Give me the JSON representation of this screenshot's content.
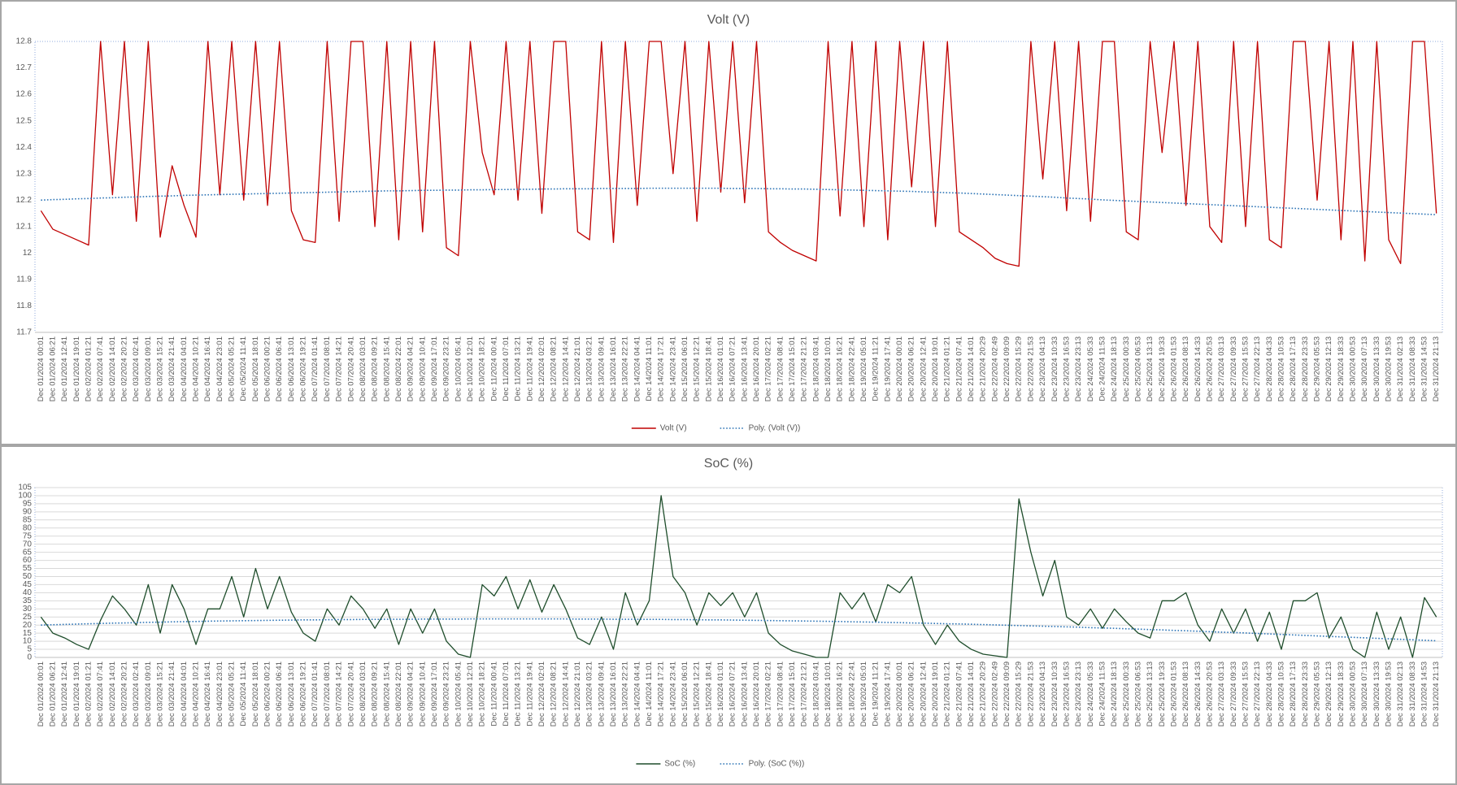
{
  "chart_data": [
    {
      "type": "line",
      "title": "Volt (V)",
      "categories": [
        "Dec 01/2024 00:01",
        "Dec 01/2024 06:21",
        "Dec 01/2024 12:41",
        "Dec 01/2024 19:01",
        "Dec 02/2024 01:21",
        "Dec 02/2024 07:41",
        "Dec 02/2024 14:01",
        "Dec 02/2024 20:21",
        "Dec 03/2024 02:41",
        "Dec 03/2024 09:01",
        "Dec 03/2024 15:21",
        "Dec 03/2024 21:41",
        "Dec 04/2024 04:01",
        "Dec 04/2024 10:21",
        "Dec 04/2024 16:41",
        "Dec 04/2024 23:01",
        "Dec 05/2024 05:21",
        "Dec 05/2024 11:41",
        "Dec 05/2024 18:01",
        "Dec 06/2024 00:21",
        "Dec 06/2024 06:41",
        "Dec 06/2024 13:01",
        "Dec 06/2024 19:21",
        "Dec 07/2024 01:41",
        "Dec 07/2024 08:01",
        "Dec 07/2024 14:21",
        "Dec 07/2024 20:41",
        "Dec 08/2024 03:01",
        "Dec 08/2024 09:21",
        "Dec 08/2024 15:41",
        "Dec 08/2024 22:01",
        "Dec 09/2024 04:21",
        "Dec 09/2024 10:41",
        "Dec 09/2024 17:01",
        "Dec 09/2024 23:21",
        "Dec 10/2024 05:41",
        "Dec 10/2024 12:01",
        "Dec 10/2024 18:21",
        "Dec 11/2024 00:41",
        "Dec 11/2024 07:01",
        "Dec 11/2024 13:21",
        "Dec 11/2024 19:41",
        "Dec 12/2024 02:01",
        "Dec 12/2024 08:21",
        "Dec 12/2024 14:41",
        "Dec 12/2024 21:01",
        "Dec 13/2024 03:21",
        "Dec 13/2024 09:41",
        "Dec 13/2024 16:01",
        "Dec 13/2024 22:21",
        "Dec 14/2024 04:41",
        "Dec 14/2024 11:01",
        "Dec 14/2024 17:21",
        "Dec 14/2024 23:41",
        "Dec 15/2024 06:01",
        "Dec 15/2024 12:21",
        "Dec 15/2024 18:41",
        "Dec 16/2024 01:01",
        "Dec 16/2024 07:21",
        "Dec 16/2024 13:41",
        "Dec 16/2024 20:01",
        "Dec 17/2024 02:21",
        "Dec 17/2024 08:41",
        "Dec 17/2024 15:01",
        "Dec 17/2024 21:21",
        "Dec 18/2024 03:41",
        "Dec 18/2024 10:01",
        "Dec 18/2024 16:21",
        "Dec 18/2024 22:41",
        "Dec 19/2024 05:01",
        "Dec 19/2024 11:21",
        "Dec 19/2024 17:41",
        "Dec 20/2024 00:01",
        "Dec 20/2024 06:21",
        "Dec 20/2024 12:41",
        "Dec 20/2024 19:01",
        "Dec 21/2024 01:21",
        "Dec 21/2024 07:41",
        "Dec 21/2024 14:01",
        "Dec 21/2024 20:29",
        "Dec 22/2024 02:49",
        "Dec 22/2024 09:09",
        "Dec 22/2024 15:29",
        "Dec 22/2024 21:53",
        "Dec 23/2024 04:13",
        "Dec 23/2024 10:33",
        "Dec 23/2024 16:53",
        "Dec 23/2024 23:13",
        "Dec 24/2024 05:33",
        "Dec 24/2024 11:53",
        "Dec 24/2024 18:13",
        "Dec 25/2024 00:33",
        "Dec 25/2024 06:53",
        "Dec 25/2024 13:13",
        "Dec 25/2024 19:33",
        "Dec 26/2024 01:53",
        "Dec 26/2024 08:13",
        "Dec 26/2024 14:33",
        "Dec 26/2024 20:53",
        "Dec 27/2024 03:13",
        "Dec 27/2024 09:33",
        "Dec 27/2024 15:53",
        "Dec 27/2024 22:13",
        "Dec 28/2024 04:33",
        "Dec 28/2024 10:53",
        "Dec 28/2024 17:13",
        "Dec 28/2024 23:33",
        "Dec 29/2024 05:53",
        "Dec 29/2024 12:13",
        "Dec 29/2024 18:33",
        "Dec 30/2024 00:53",
        "Dec 30/2024 07:13",
        "Dec 30/2024 13:33",
        "Dec 30/2024 19:53",
        "Dec 31/2024 02:13",
        "Dec 31/2024 08:33",
        "Dec 31/2024 14:53",
        "Dec 31/2024 21:13"
      ],
      "series": [
        {
          "name": "Volt (V)",
          "color": "#c00000",
          "style": "solid",
          "values": [
            12.16,
            12.09,
            12.07,
            12.05,
            12.03,
            12.8,
            12.22,
            12.8,
            12.12,
            12.8,
            12.06,
            12.33,
            12.18,
            12.06,
            12.8,
            12.22,
            12.8,
            12.2,
            12.8,
            12.18,
            12.8,
            12.16,
            12.05,
            12.04,
            12.8,
            12.12,
            12.8,
            12.8,
            12.1,
            12.8,
            12.05,
            12.8,
            12.08,
            12.8,
            12.02,
            11.99,
            12.8,
            12.38,
            12.22,
            12.8,
            12.2,
            12.8,
            12.15,
            12.8,
            12.8,
            12.08,
            12.05,
            12.8,
            12.04,
            12.8,
            12.18,
            12.8,
            12.8,
            12.3,
            12.8,
            12.12,
            12.8,
            12.23,
            12.8,
            12.19,
            12.8,
            12.08,
            12.04,
            12.01,
            11.99,
            11.97,
            12.8,
            12.14,
            12.8,
            12.1,
            12.8,
            12.05,
            12.8,
            12.25,
            12.8,
            12.1,
            12.8,
            12.08,
            12.05,
            12.02,
            11.98,
            11.96,
            11.95,
            12.8,
            12.28,
            12.8,
            12.16,
            12.8,
            12.12,
            12.8,
            12.8,
            12.08,
            12.05,
            12.8,
            12.38,
            12.8,
            12.18,
            12.8,
            12.1,
            12.04,
            12.8,
            12.1,
            12.8,
            12.05,
            12.02,
            12.8,
            12.8,
            12.2,
            12.8,
            12.05,
            12.8,
            11.97,
            12.8,
            12.05,
            11.96,
            12.8,
            12.8,
            12.15
          ]
        },
        {
          "name": "Poly. (Volt (V))",
          "color": "#2e75b6",
          "style": "dotted",
          "values": [
            12.2,
            12.202,
            12.203,
            12.205,
            12.206,
            12.208,
            12.209,
            12.211,
            12.212,
            12.214,
            12.215,
            12.216,
            12.218,
            12.219,
            12.22,
            12.221,
            12.222,
            12.223,
            12.224,
            12.225,
            12.226,
            12.227,
            12.228,
            12.229,
            12.23,
            12.231,
            12.232,
            12.233,
            12.234,
            12.235,
            12.235,
            12.236,
            12.237,
            12.237,
            12.238,
            12.238,
            12.239,
            12.239,
            12.24,
            12.24,
            12.241,
            12.241,
            12.242,
            12.242,
            12.243,
            12.243,
            12.243,
            12.244,
            12.244,
            12.244,
            12.244,
            12.245,
            12.245,
            12.245,
            12.245,
            12.245,
            12.245,
            12.245,
            12.244,
            12.244,
            12.244,
            12.243,
            12.243,
            12.242,
            12.242,
            12.241,
            12.24,
            12.239,
            12.238,
            12.237,
            12.236,
            12.235,
            12.234,
            12.233,
            12.231,
            12.23,
            12.228,
            12.227,
            12.225,
            12.223,
            12.221,
            12.219,
            12.217,
            12.215,
            12.213,
            12.211,
            12.208,
            12.206,
            12.204,
            12.201,
            12.199,
            12.197,
            12.195,
            12.193,
            12.191,
            12.189,
            12.187,
            12.185,
            12.183,
            12.181,
            12.179,
            12.177,
            12.175,
            12.173,
            12.171,
            12.169,
            12.167,
            12.165,
            12.163,
            12.161,
            12.159,
            12.157,
            12.155,
            12.153,
            12.151,
            12.149,
            12.147,
            12.145
          ]
        }
      ],
      "ylim": [
        11.7,
        12.8
      ],
      "yticks": [
        11.7,
        11.8,
        11.9,
        12,
        12.1,
        12.2,
        12.3,
        12.4,
        12.5,
        12.6,
        12.7,
        12.8
      ],
      "grid": false,
      "legend": "bottom"
    },
    {
      "type": "line",
      "title": "SoC (%)",
      "categories": [
        "Dec 01/2024 00:01",
        "Dec 01/2024 06:21",
        "Dec 01/2024 12:41",
        "Dec 01/2024 19:01",
        "Dec 02/2024 01:21",
        "Dec 02/2024 07:41",
        "Dec 02/2024 14:01",
        "Dec 02/2024 20:21",
        "Dec 03/2024 02:41",
        "Dec 03/2024 09:01",
        "Dec 03/2024 15:21",
        "Dec 03/2024 21:41",
        "Dec 04/2024 04:01",
        "Dec 04/2024 10:21",
        "Dec 04/2024 16:41",
        "Dec 04/2024 23:01",
        "Dec 05/2024 05:21",
        "Dec 05/2024 11:41",
        "Dec 05/2024 18:01",
        "Dec 06/2024 00:21",
        "Dec 06/2024 06:41",
        "Dec 06/2024 13:01",
        "Dec 06/2024 19:21",
        "Dec 07/2024 01:41",
        "Dec 07/2024 08:01",
        "Dec 07/2024 14:21",
        "Dec 07/2024 20:41",
        "Dec 08/2024 03:01",
        "Dec 08/2024 09:21",
        "Dec 08/2024 15:41",
        "Dec 08/2024 22:01",
        "Dec 09/2024 04:21",
        "Dec 09/2024 10:41",
        "Dec 09/2024 17:01",
        "Dec 09/2024 23:21",
        "Dec 10/2024 05:41",
        "Dec 10/2024 12:01",
        "Dec 10/2024 18:21",
        "Dec 11/2024 00:41",
        "Dec 11/2024 07:01",
        "Dec 11/2024 13:21",
        "Dec 11/2024 19:41",
        "Dec 12/2024 02:01",
        "Dec 12/2024 08:21",
        "Dec 12/2024 14:41",
        "Dec 12/2024 21:01",
        "Dec 13/2024 03:21",
        "Dec 13/2024 09:41",
        "Dec 13/2024 16:01",
        "Dec 13/2024 22:21",
        "Dec 14/2024 04:41",
        "Dec 14/2024 11:01",
        "Dec 14/2024 17:21",
        "Dec 14/2024 23:41",
        "Dec 15/2024 06:01",
        "Dec 15/2024 12:21",
        "Dec 15/2024 18:41",
        "Dec 16/2024 01:01",
        "Dec 16/2024 07:21",
        "Dec 16/2024 13:41",
        "Dec 16/2024 20:01",
        "Dec 17/2024 02:21",
        "Dec 17/2024 08:41",
        "Dec 17/2024 15:01",
        "Dec 17/2024 21:21",
        "Dec 18/2024 03:41",
        "Dec 18/2024 10:01",
        "Dec 18/2024 16:21",
        "Dec 18/2024 22:41",
        "Dec 19/2024 05:01",
        "Dec 19/2024 11:21",
        "Dec 19/2024 17:41",
        "Dec 20/2024 00:01",
        "Dec 20/2024 06:21",
        "Dec 20/2024 12:41",
        "Dec 20/2024 19:01",
        "Dec 21/2024 01:21",
        "Dec 21/2024 07:41",
        "Dec 21/2024 14:01",
        "Dec 21/2024 20:29",
        "Dec 22/2024 02:49",
        "Dec 22/2024 09:09",
        "Dec 22/2024 15:29",
        "Dec 22/2024 21:53",
        "Dec 23/2024 04:13",
        "Dec 23/2024 10:33",
        "Dec 23/2024 16:53",
        "Dec 23/2024 23:13",
        "Dec 24/2024 05:33",
        "Dec 24/2024 11:53",
        "Dec 24/2024 18:13",
        "Dec 25/2024 00:33",
        "Dec 25/2024 06:53",
        "Dec 25/2024 13:13",
        "Dec 25/2024 19:33",
        "Dec 26/2024 01:53",
        "Dec 26/2024 08:13",
        "Dec 26/2024 14:33",
        "Dec 26/2024 20:53",
        "Dec 27/2024 03:13",
        "Dec 27/2024 09:33",
        "Dec 27/2024 15:53",
        "Dec 27/2024 22:13",
        "Dec 28/2024 04:33",
        "Dec 28/2024 10:53",
        "Dec 28/2024 17:13",
        "Dec 28/2024 23:33",
        "Dec 29/2024 05:53",
        "Dec 29/2024 12:13",
        "Dec 29/2024 18:33",
        "Dec 30/2024 00:53",
        "Dec 30/2024 07:13",
        "Dec 30/2024 13:33",
        "Dec 30/2024 19:53",
        "Dec 31/2024 02:13",
        "Dec 31/2024 08:33",
        "Dec 31/2024 14:53",
        "Dec 31/2024 21:13"
      ],
      "series": [
        {
          "name": "SoC (%)",
          "color": "#1e4d2b",
          "style": "solid",
          "values": [
            25,
            15,
            12,
            8,
            5,
            23,
            38,
            30,
            20,
            45,
            15,
            45,
            30,
            8,
            30,
            30,
            50,
            25,
            55,
            30,
            50,
            28,
            15,
            10,
            30,
            20,
            38,
            30,
            18,
            30,
            8,
            30,
            15,
            30,
            10,
            2,
            0,
            45,
            38,
            50,
            30,
            48,
            28,
            45,
            30,
            12,
            8,
            25,
            5,
            40,
            20,
            35,
            100,
            50,
            40,
            20,
            40,
            32,
            40,
            25,
            40,
            15,
            8,
            4,
            2,
            0,
            0,
            40,
            30,
            40,
            22,
            45,
            40,
            50,
            20,
            8,
            20,
            10,
            5,
            2,
            1,
            0,
            98,
            65,
            38,
            60,
            25,
            20,
            30,
            18,
            30,
            22,
            15,
            12,
            35,
            35,
            40,
            20,
            10,
            30,
            15,
            30,
            10,
            28,
            5,
            35,
            35,
            40,
            12,
            25,
            5,
            0,
            28,
            5,
            25,
            0,
            37,
            25
          ]
        },
        {
          "name": "Poly. (SoC (%))",
          "color": "#2e75b6",
          "style": "dotted",
          "values": [
            20.0,
            20.2,
            20.4,
            20.6,
            20.8,
            21.0,
            21.2,
            21.3,
            21.5,
            21.7,
            21.8,
            22.0,
            22.1,
            22.2,
            22.4,
            22.5,
            22.6,
            22.7,
            22.8,
            22.9,
            23.0,
            23.1,
            23.2,
            23.2,
            23.3,
            23.4,
            23.4,
            23.5,
            23.5,
            23.6,
            23.6,
            23.6,
            23.7,
            23.7,
            23.7,
            23.7,
            23.8,
            23.8,
            23.8,
            23.8,
            23.8,
            23.8,
            23.8,
            23.8,
            23.8,
            23.7,
            23.7,
            23.7,
            23.6,
            23.6,
            23.6,
            23.5,
            23.5,
            23.4,
            23.4,
            23.3,
            23.2,
            23.2,
            23.1,
            23.0,
            22.9,
            22.8,
            22.7,
            22.6,
            22.5,
            22.4,
            22.3,
            22.2,
            22.0,
            21.9,
            21.8,
            21.6,
            21.5,
            21.3,
            21.2,
            21.0,
            20.8,
            20.7,
            20.5,
            20.3,
            20.1,
            19.9,
            19.7,
            19.5,
            19.3,
            19.1,
            18.9,
            18.7,
            18.4,
            18.2,
            18.0,
            17.7,
            17.5,
            17.2,
            17.0,
            16.7,
            16.5,
            16.2,
            15.9,
            15.6,
            15.4,
            15.1,
            14.8,
            14.5,
            14.2,
            13.9,
            13.6,
            13.3,
            13.0,
            12.7,
            12.4,
            12.1,
            11.8,
            11.5,
            11.2,
            10.9,
            10.6,
            10.3
          ]
        }
      ],
      "ylim": [
        0,
        105
      ],
      "yticks": [
        0,
        5,
        10,
        15,
        20,
        25,
        30,
        35,
        40,
        45,
        50,
        55,
        60,
        65,
        70,
        75,
        80,
        85,
        90,
        95,
        100,
        105
      ],
      "grid": true,
      "legend": "bottom"
    }
  ]
}
